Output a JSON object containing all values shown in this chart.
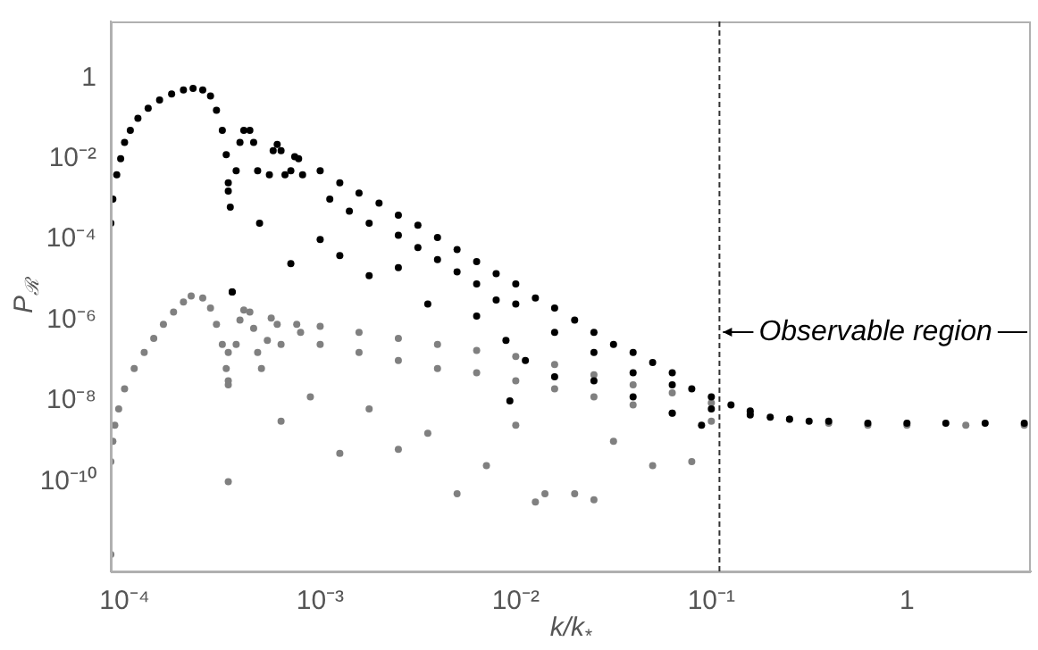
{
  "chart_data": {
    "type": "scatter",
    "xlabel": "k/k$_{*}$",
    "ylabel": "P$_{ℛ}$",
    "log": "xy",
    "grid": false,
    "legend": false,
    "marker": "circle",
    "xlim": [
      8.5e-05,
      4.3
    ],
    "ylim": [
      6e-13,
      25
    ],
    "xticks": [
      {
        "value": 0.0001,
        "label": "10⁻⁴"
      },
      {
        "value": 0.001,
        "label": "10⁻³"
      },
      {
        "value": 0.01,
        "label": "10⁻²"
      },
      {
        "value": 0.1,
        "label": "10⁻¹"
      },
      1
    ],
    "yticks": [
      1,
      {
        "value": 0.01,
        "label": "10⁻²"
      },
      {
        "value": 0.0001,
        "label": "10⁻⁴"
      },
      {
        "value": 1e-06,
        "label": "10⁻⁶"
      },
      {
        "value": 1e-08,
        "label": "10⁻⁸"
      },
      {
        "value": 1e-10,
        "label": "10⁻¹⁰"
      }
    ],
    "ref_lines": [
      {
        "axis": "x",
        "value": 0.11,
        "label": "Observable region",
        "line_style": "dashed",
        "color": "#333333"
      }
    ],
    "series": [
      {
        "color": "#000000",
        "x": [
          8.51e-05,
          8.71e-05,
          9.12e-05,
          9.55e-05,
          0.0001,
          0.000107,
          0.000117,
          0.000132,
          0.000151,
          0.000174,
          0.0002,
          0.000224,
          0.000251,
          0.000275,
          0.000295,
          0.000316,
          0.000331,
          0.000339,
          0.000339,
          0.000347,
          0.000355,
          0.000372,
          0.000389,
          0.000407,
          0.000437,
          0.000457,
          0.000479,
          0.00049,
          0.00055,
          0.000575,
          0.000603,
          0.000631,
          0.000661,
          0.000708,
          0.000741,
          0.000776,
          0.000813,
          0.001,
          0.00126,
          0.00158,
          0.002,
          0.00251,
          0.00316,
          0.00398,
          0.00501,
          0.00631,
          0.00794,
          0.01,
          0.0126,
          0.0158,
          0.02,
          0.0251,
          0.0316,
          0.0398,
          0.0501,
          0.0631,
          0.0794,
          0.1,
          0.126,
          0.158,
          0.2,
          0.251,
          0.316,
          0.398,
          0.631,
          1,
          1.58,
          2.51,
          3.98,
          0.00112,
          0.00141,
          0.00178,
          0.00251,
          0.00316,
          0.00398,
          0.00501,
          0.00631,
          0.00794,
          0.01,
          0.0158,
          0.0251,
          0.0398,
          0.0631,
          0.1,
          0.158,
          0.000355,
          0.000708,
          0.001,
          0.00126,
          0.00178,
          0.00251,
          0.00355,
          0.00631,
          0.00891,
          0.00933,
          0.0112,
          0.0158,
          0.0251,
          0.0398,
          0.0631,
          0.0891
        ],
        "values": [
          0.000251,
          0.001,
          0.00398,
          0.01,
          0.0251,
          0.0501,
          0.1,
          0.178,
          0.282,
          0.398,
          0.501,
          0.55,
          0.501,
          0.355,
          0.158,
          0.0501,
          0.0126,
          0.00251,
          0.00158,
          0.000631,
          5.01e-06,
          0.00501,
          0.0251,
          0.0501,
          0.0501,
          0.0251,
          0.00501,
          0.000251,
          0.00398,
          0.0158,
          0.0224,
          0.0158,
          0.00398,
          0.00501,
          0.0112,
          0.01,
          0.00398,
          0.00501,
          0.00251,
          0.00141,
          0.000794,
          0.000398,
          0.000224,
          0.000112,
          5.62e-05,
          2.82e-05,
          1.41e-05,
          7.94e-06,
          3.55e-06,
          2e-06,
          1e-06,
          5.01e-07,
          2.51e-07,
          1.58e-07,
          8.91e-08,
          5.01e-08,
          2e-08,
          1.26e-08,
          7.94e-09,
          5.62e-09,
          3.98e-09,
          3.55e-09,
          3.16e-09,
          3.16e-09,
          2.82e-09,
          2.82e-09,
          2.82e-09,
          2.82e-09,
          2.82e-09,
          0.001,
          0.000501,
          0.000251,
          0.000126,
          6.31e-05,
          3.16e-05,
          1.58e-05,
          7.94e-06,
          3.16e-06,
          2.51e-06,
          5.01e-07,
          1.58e-07,
          5.01e-08,
          2.51e-08,
          6.31e-09,
          4.47e-09,
          5.01e-06,
          2.51e-05,
          0.0001,
          3.98e-05,
          1.26e-05,
          2e-05,
          2.51e-06,
          1.26e-06,
          3.16e-07,
          1e-08,
          1e-07,
          3.98e-08,
          3.16e-08,
          1.26e-08,
          5.01e-09,
          2.51e-09
        ]
      },
      {
        "color": "#808080",
        "x": [
          8.51e-05,
          8.51e-05,
          8.71e-05,
          8.91e-05,
          9.33e-05,
          0.0001,
          0.000112,
          0.000126,
          0.000141,
          0.000158,
          0.000178,
          0.0002,
          0.000219,
          0.000251,
          0.000275,
          0.000295,
          0.000316,
          0.000331,
          0.000339,
          0.000339,
          0.000339,
          0.000339,
          0.000372,
          0.000389,
          0.000407,
          0.000437,
          0.000457,
          0.000479,
          0.000537,
          0.000562,
          0.000603,
          0.000631,
          0.000759,
          0.000794,
          0.001,
          0.00158,
          0.00251,
          0.00398,
          0.00631,
          0.01,
          0.0158,
          0.0251,
          0.0398,
          0.0631,
          0.1,
          0.158,
          0.251,
          0.398,
          0.631,
          1,
          2,
          3.98,
          0.001,
          0.00158,
          0.00251,
          0.00398,
          0.00631,
          0.01,
          0.0158,
          0.0251,
          0.0398,
          0.0631,
          0.1,
          0.000501,
          0.000631,
          0.000891,
          0.00126,
          0.00178,
          0.00251,
          0.00355,
          0.00501,
          0.00708,
          0.01,
          0.0141,
          0.02,
          0.0316,
          0.0501,
          0.0794,
          0.0126,
          0.0251
        ],
        "values": [
          1.58e-12,
          3.16e-10,
          1e-09,
          2.51e-09,
          6.31e-09,
          2e-08,
          6.31e-08,
          1.58e-07,
          3.55e-07,
          7.94e-07,
          1.58e-06,
          2.82e-06,
          3.98e-06,
          3.55e-06,
          2e-06,
          7.94e-07,
          2.51e-07,
          6.31e-08,
          2.51e-08,
          1.58e-07,
          3.16e-08,
          1e-10,
          2.51e-07,
          1e-06,
          1.78e-06,
          1.58e-06,
          6.31e-07,
          1.58e-07,
          3.16e-07,
          1.12e-06,
          7.94e-07,
          2.51e-07,
          7.94e-07,
          5.01e-07,
          7.08e-07,
          5.01e-07,
          3.55e-07,
          2.51e-07,
          1.78e-07,
          1.26e-07,
          7.94e-08,
          4.47e-08,
          2.51e-08,
          1.58e-08,
          8.91e-09,
          5.01e-09,
          3.55e-09,
          2.82e-09,
          2.51e-09,
          2.51e-09,
          2.51e-09,
          2.51e-09,
          2.51e-07,
          1.58e-07,
          1e-07,
          6.31e-08,
          5.01e-08,
          3.16e-08,
          2e-08,
          1.26e-08,
          7.94e-09,
          5.01e-09,
          3.16e-09,
          6.31e-08,
          3.16e-09,
          1.26e-08,
          5.01e-10,
          6.31e-09,
          6.31e-10,
          1.58e-09,
          5.01e-11,
          2.51e-10,
          2.51e-09,
          5.01e-11,
          5.01e-11,
          1e-09,
          2.51e-10,
          3.16e-10,
          3.16e-11,
          3.55e-11
        ]
      }
    ]
  }
}
